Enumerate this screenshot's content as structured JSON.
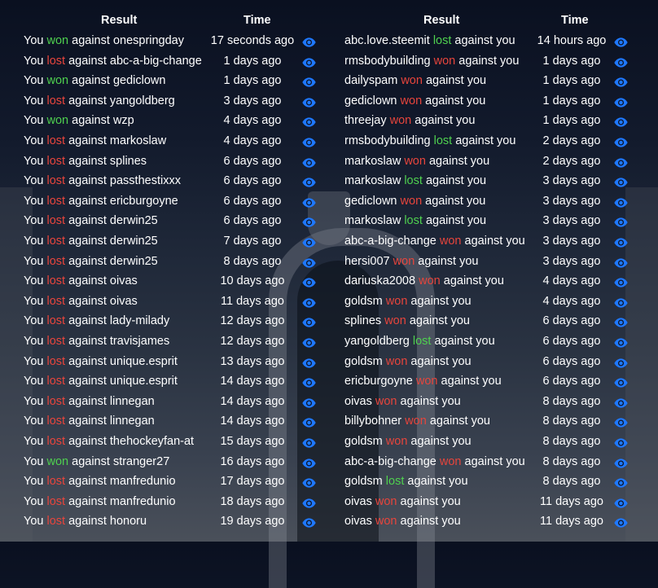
{
  "headers": {
    "result": "Result",
    "time": "Time"
  },
  "labels": {
    "you": "You",
    "against": "against",
    "against_you": "against you"
  },
  "colors": {
    "won_by_you": "#4fd14f",
    "lost_by_you": "#e8453c",
    "eye": "#1f78ff"
  },
  "eye_icon": "eye-icon",
  "left": [
    {
      "outcome": "won",
      "opponent": "onespringday",
      "time": "17 seconds ago"
    },
    {
      "outcome": "lost",
      "opponent": "abc-a-big-change",
      "time": "1 days ago"
    },
    {
      "outcome": "won",
      "opponent": "gediclown",
      "time": "1 days ago"
    },
    {
      "outcome": "lost",
      "opponent": "yangoldberg",
      "time": "3 days ago"
    },
    {
      "outcome": "won",
      "opponent": "wzp",
      "time": "4 days ago"
    },
    {
      "outcome": "lost",
      "opponent": "markoslaw",
      "time": "4 days ago"
    },
    {
      "outcome": "lost",
      "opponent": "splines",
      "time": "6 days ago"
    },
    {
      "outcome": "lost",
      "opponent": "passthestixxx",
      "time": "6 days ago"
    },
    {
      "outcome": "lost",
      "opponent": "ericburgoyne",
      "time": "6 days ago"
    },
    {
      "outcome": "lost",
      "opponent": "derwin25",
      "time": "6 days ago"
    },
    {
      "outcome": "lost",
      "opponent": "derwin25",
      "time": "7 days ago"
    },
    {
      "outcome": "lost",
      "opponent": "derwin25",
      "time": "8 days ago"
    },
    {
      "outcome": "lost",
      "opponent": "oivas",
      "time": "10 days ago"
    },
    {
      "outcome": "lost",
      "opponent": "oivas",
      "time": "11 days ago"
    },
    {
      "outcome": "lost",
      "opponent": "lady-milady",
      "time": "12 days ago"
    },
    {
      "outcome": "lost",
      "opponent": "travisjames",
      "time": "12 days ago"
    },
    {
      "outcome": "lost",
      "opponent": "unique.esprit",
      "time": "13 days ago"
    },
    {
      "outcome": "lost",
      "opponent": "unique.esprit",
      "time": "14 days ago"
    },
    {
      "outcome": "lost",
      "opponent": "linnegan",
      "time": "14 days ago"
    },
    {
      "outcome": "lost",
      "opponent": "linnegan",
      "time": "14 days ago"
    },
    {
      "outcome": "lost",
      "opponent": "thehockeyfan-at",
      "time": "15 days ago"
    },
    {
      "outcome": "won",
      "opponent": "stranger27",
      "time": "16 days ago"
    },
    {
      "outcome": "lost",
      "opponent": "manfredunio",
      "time": "17 days ago"
    },
    {
      "outcome": "lost",
      "opponent": "manfredunio",
      "time": "18 days ago"
    },
    {
      "outcome": "lost",
      "opponent": "honoru",
      "time": "19 days ago"
    }
  ],
  "right": [
    {
      "opponent": "abc.love.steemit",
      "outcome": "lost",
      "time": "14 hours ago"
    },
    {
      "opponent": "rmsbodybuilding",
      "outcome": "won",
      "time": "1 days ago"
    },
    {
      "opponent": "dailyspam",
      "outcome": "won",
      "time": "1 days ago"
    },
    {
      "opponent": "gediclown",
      "outcome": "won",
      "time": "1 days ago"
    },
    {
      "opponent": "threejay",
      "outcome": "won",
      "time": "1 days ago"
    },
    {
      "opponent": "rmsbodybuilding",
      "outcome": "lost",
      "time": "2 days ago"
    },
    {
      "opponent": "markoslaw",
      "outcome": "won",
      "time": "2 days ago"
    },
    {
      "opponent": "markoslaw",
      "outcome": "lost",
      "time": "3 days ago"
    },
    {
      "opponent": "gediclown",
      "outcome": "won",
      "time": "3 days ago"
    },
    {
      "opponent": "markoslaw",
      "outcome": "lost",
      "time": "3 days ago"
    },
    {
      "opponent": "abc-a-big-change",
      "outcome": "won",
      "time": "3 days ago"
    },
    {
      "opponent": "hersi007",
      "outcome": "won",
      "time": "3 days ago"
    },
    {
      "opponent": "dariuska2008",
      "outcome": "won",
      "time": "4 days ago"
    },
    {
      "opponent": "goldsm",
      "outcome": "won",
      "time": "4 days ago"
    },
    {
      "opponent": "splines",
      "outcome": "won",
      "time": "6 days ago"
    },
    {
      "opponent": "yangoldberg",
      "outcome": "lost",
      "time": "6 days ago"
    },
    {
      "opponent": "goldsm",
      "outcome": "won",
      "time": "6 days ago"
    },
    {
      "opponent": "ericburgoyne",
      "outcome": "won",
      "time": "6 days ago"
    },
    {
      "opponent": "oivas",
      "outcome": "won",
      "time": "8 days ago"
    },
    {
      "opponent": "billybohner",
      "outcome": "won",
      "time": "8 days ago"
    },
    {
      "opponent": "goldsm",
      "outcome": "won",
      "time": "8 days ago"
    },
    {
      "opponent": "abc-a-big-change",
      "outcome": "won",
      "time": "8 days ago"
    },
    {
      "opponent": "goldsm",
      "outcome": "lost",
      "time": "8 days ago"
    },
    {
      "opponent": "oivas",
      "outcome": "won",
      "time": "11 days ago"
    },
    {
      "opponent": "oivas",
      "outcome": "won",
      "time": "11 days ago"
    }
  ]
}
